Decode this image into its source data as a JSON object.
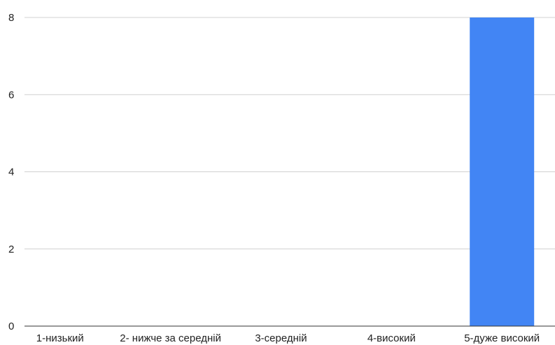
{
  "chart_data": {
    "type": "bar",
    "categories": [
      "1-низький",
      "2- нижче за середній",
      "3-середній",
      "4-високий",
      "5-дуже високий"
    ],
    "values": [
      0,
      0,
      0,
      0,
      8
    ],
    "ylim": [
      0,
      8
    ],
    "yticks": [
      "0",
      "2",
      "4",
      "6",
      "8"
    ],
    "grid": true,
    "bar_color": "#4285f4"
  }
}
